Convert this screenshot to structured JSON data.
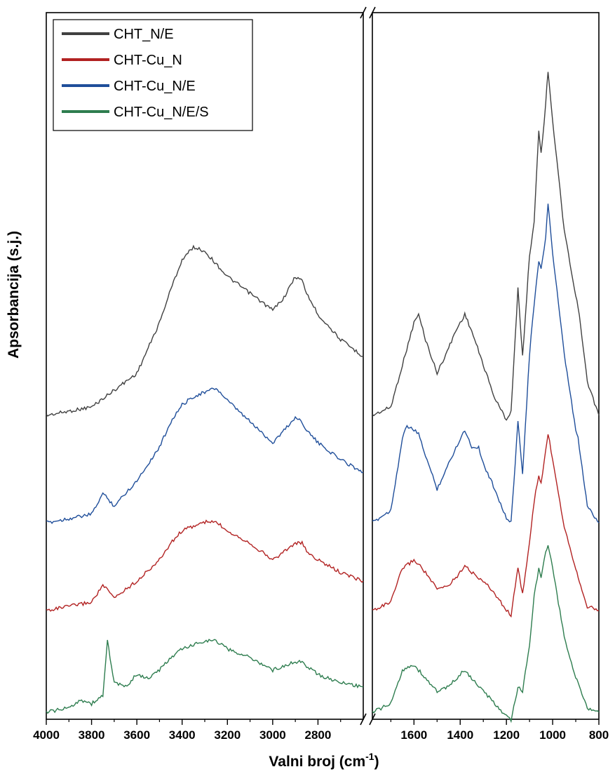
{
  "chart_data": {
    "type": "line",
    "xlabel": "Valni broj (cm",
    "xlabel_sup": "-1",
    "xlabel_close": ")",
    "ylabel": "Apsorbancija (s.j.)",
    "x_reversed": true,
    "x_axis_break": [
      2600,
      1780
    ],
    "xlim_left_panel": [
      4000,
      2600
    ],
    "xlim_right_panel": [
      1780,
      800
    ],
    "left_ticks": [
      4000,
      3800,
      3600,
      3400,
      3200,
      3000,
      2800
    ],
    "right_ticks": [
      1600,
      1400,
      1200,
      1000,
      800
    ],
    "y_ticks_shown": false,
    "grid": false,
    "legend_position": "top-left",
    "colors": {
      "CHT_N/E": "#404040",
      "CHT-Cu_N": "#b22222",
      "CHT-Cu_N/E": "#1f4e9a",
      "CHT-Cu_N/E/S": "#2e7d4f"
    },
    "series": [
      {
        "name": "CHT_N/E",
        "x": [
          4000,
          3900,
          3800,
          3700,
          3600,
          3550,
          3500,
          3450,
          3400,
          3350,
          3300,
          3250,
          3200,
          3100,
          3000,
          2950,
          2900,
          2870,
          2850,
          2800,
          2700,
          2600,
          1780,
          1700,
          1650,
          1600,
          1580,
          1550,
          1500,
          1450,
          1420,
          1400,
          1380,
          1350,
          1300,
          1250,
          1200,
          1180,
          1150,
          1130,
          1100,
          1080,
          1060,
          1050,
          1030,
          1020,
          1000,
          950,
          900,
          890,
          850,
          800
        ],
        "y": [
          0.9,
          0.95,
          1.0,
          1.2,
          1.4,
          1.7,
          2.0,
          2.4,
          2.75,
          2.9,
          2.85,
          2.7,
          2.55,
          2.35,
          2.15,
          2.3,
          2.55,
          2.5,
          2.35,
          2.1,
          1.8,
          1.6,
          0.9,
          1.0,
          1.5,
          2.0,
          2.1,
          1.8,
          1.4,
          1.7,
          1.9,
          2.0,
          2.1,
          1.9,
          1.5,
          1.1,
          0.85,
          0.95,
          2.4,
          1.6,
          2.8,
          3.2,
          4.3,
          4.0,
          4.6,
          5.0,
          4.4,
          3.1,
          2.3,
          2.2,
          1.3,
          0.9
        ]
      },
      {
        "name": "CHT-Cu_N/E",
        "x": [
          4000,
          3900,
          3800,
          3750,
          3700,
          3600,
          3500,
          3450,
          3400,
          3350,
          3300,
          3250,
          3200,
          3100,
          3000,
          2950,
          2900,
          2870,
          2850,
          2800,
          2700,
          2600,
          1780,
          1700,
          1650,
          1630,
          1600,
          1580,
          1550,
          1500,
          1450,
          1400,
          1380,
          1350,
          1320,
          1300,
          1250,
          1200,
          1180,
          1150,
          1130,
          1100,
          1080,
          1060,
          1050,
          1030,
          1020,
          1000,
          950,
          900,
          890,
          850,
          800
        ],
        "y": [
          0.0,
          0.05,
          0.1,
          0.35,
          0.2,
          0.5,
          0.9,
          1.2,
          1.4,
          1.5,
          1.55,
          1.6,
          1.45,
          1.2,
          0.95,
          1.1,
          1.25,
          1.2,
          1.1,
          0.95,
          0.75,
          0.6,
          0.0,
          0.15,
          1.0,
          1.15,
          1.1,
          1.05,
          0.8,
          0.4,
          0.7,
          1.0,
          1.1,
          0.9,
          0.9,
          0.7,
          0.4,
          0.05,
          0.0,
          1.2,
          0.6,
          2.0,
          2.6,
          3.1,
          3.0,
          3.4,
          3.8,
          3.2,
          2.0,
          1.1,
          1.0,
          0.2,
          0.0
        ]
      },
      {
        "name": "CHT-Cu_N",
        "x": [
          4000,
          3900,
          3800,
          3750,
          3700,
          3600,
          3500,
          3450,
          3400,
          3350,
          3300,
          3250,
          3200,
          3100,
          3000,
          2950,
          2900,
          2870,
          2850,
          2800,
          2700,
          2600,
          1780,
          1700,
          1650,
          1600,
          1580,
          1550,
          1500,
          1450,
          1400,
          1380,
          1350,
          1300,
          1250,
          1200,
          1180,
          1150,
          1130,
          1100,
          1080,
          1060,
          1050,
          1030,
          1020,
          1000,
          950,
          900,
          890,
          850,
          800
        ],
        "y": [
          0.0,
          0.05,
          0.1,
          0.3,
          0.15,
          0.35,
          0.6,
          0.8,
          0.95,
          1.0,
          1.05,
          1.05,
          0.95,
          0.8,
          0.6,
          0.7,
          0.8,
          0.8,
          0.7,
          0.6,
          0.45,
          0.35,
          0.0,
          0.1,
          0.5,
          0.6,
          0.55,
          0.45,
          0.25,
          0.3,
          0.45,
          0.55,
          0.45,
          0.35,
          0.2,
          0.0,
          -0.05,
          0.5,
          0.2,
          0.8,
          1.3,
          1.6,
          1.5,
          1.9,
          2.1,
          1.8,
          1.0,
          0.5,
          0.4,
          0.05,
          0.0
        ]
      },
      {
        "name": "CHT-Cu_N/E/S",
        "x": [
          4000,
          3900,
          3850,
          3800,
          3750,
          3730,
          3700,
          3650,
          3600,
          3550,
          3500,
          3450,
          3400,
          3350,
          3300,
          3250,
          3200,
          3100,
          3000,
          2950,
          2900,
          2870,
          2850,
          2800,
          2700,
          2600,
          1780,
          1700,
          1650,
          1620,
          1600,
          1580,
          1550,
          1500,
          1450,
          1400,
          1380,
          1350,
          1300,
          1250,
          1200,
          1180,
          1150,
          1130,
          1100,
          1080,
          1060,
          1050,
          1030,
          1020,
          1000,
          950,
          900,
          890,
          850,
          800
        ],
        "y": [
          0.0,
          0.05,
          0.15,
          0.1,
          0.2,
          0.85,
          0.35,
          0.3,
          0.45,
          0.4,
          0.5,
          0.65,
          0.75,
          0.8,
          0.85,
          0.85,
          0.75,
          0.65,
          0.5,
          0.55,
          0.6,
          0.6,
          0.55,
          0.45,
          0.35,
          0.3,
          0.0,
          0.1,
          0.5,
          0.55,
          0.55,
          0.5,
          0.4,
          0.25,
          0.3,
          0.45,
          0.5,
          0.4,
          0.25,
          0.1,
          -0.05,
          -0.1,
          0.3,
          0.25,
          0.8,
          1.4,
          1.7,
          1.6,
          1.9,
          2.0,
          1.7,
          0.9,
          0.4,
          0.35,
          0.05,
          0.0
        ]
      }
    ]
  }
}
